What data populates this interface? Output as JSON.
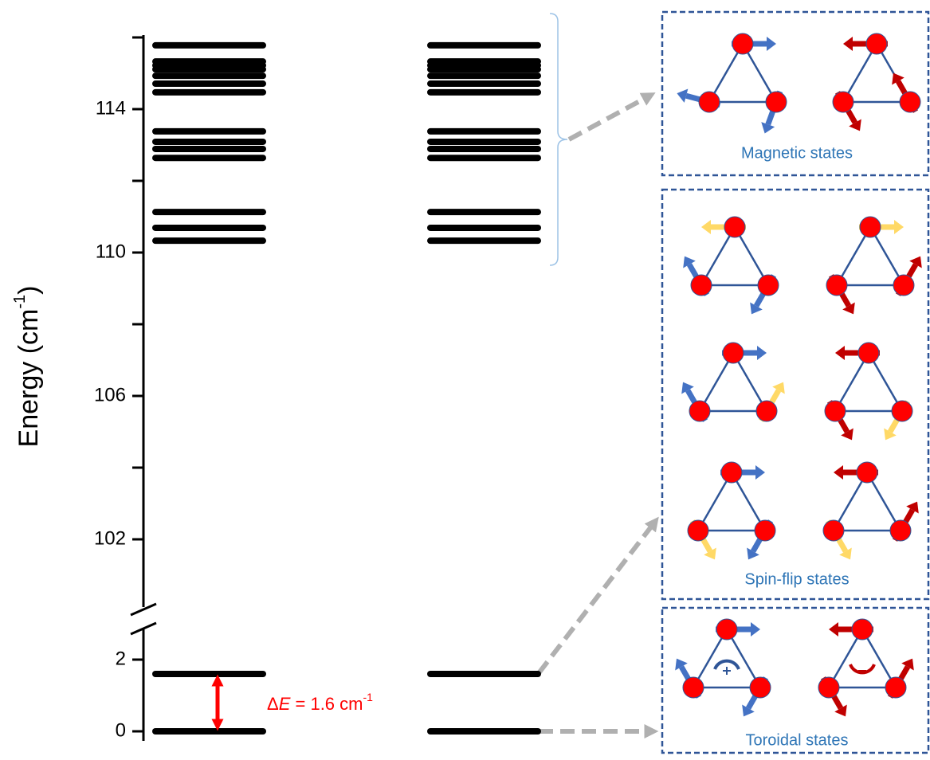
{
  "chart_data": {
    "type": "energy-levels",
    "y_label": {
      "text": "Energy (cm",
      "sup": "-1",
      "close": ")"
    },
    "level_color": "#000000",
    "upper_axis": {
      "ylim": [
        100.5,
        116
      ],
      "yticks": [
        102,
        106,
        110,
        114
      ],
      "minor_yticks": [
        104,
        108,
        112,
        116
      ],
      "levels": [
        115.78,
        115.33,
        115.22,
        115.11,
        114.93,
        114.71,
        114.47,
        113.38,
        113.09,
        112.89,
        112.64,
        111.13,
        110.69,
        110.33
      ]
    },
    "lower_axis": {
      "ylim": [
        0,
        3
      ],
      "yticks": [
        0,
        2
      ],
      "levels": [
        1.6,
        0
      ]
    },
    "annotation": {
      "delta": "Δ",
      "var": "E",
      "text": " = 1.6 cm",
      "sup": "-1",
      "value": 1.6,
      "from": 0,
      "color": "#ff0000"
    },
    "panels": [
      {
        "title": "Magnetic states"
      },
      {
        "title": "Spin-flip states"
      },
      {
        "title": "Toroidal states"
      }
    ]
  }
}
